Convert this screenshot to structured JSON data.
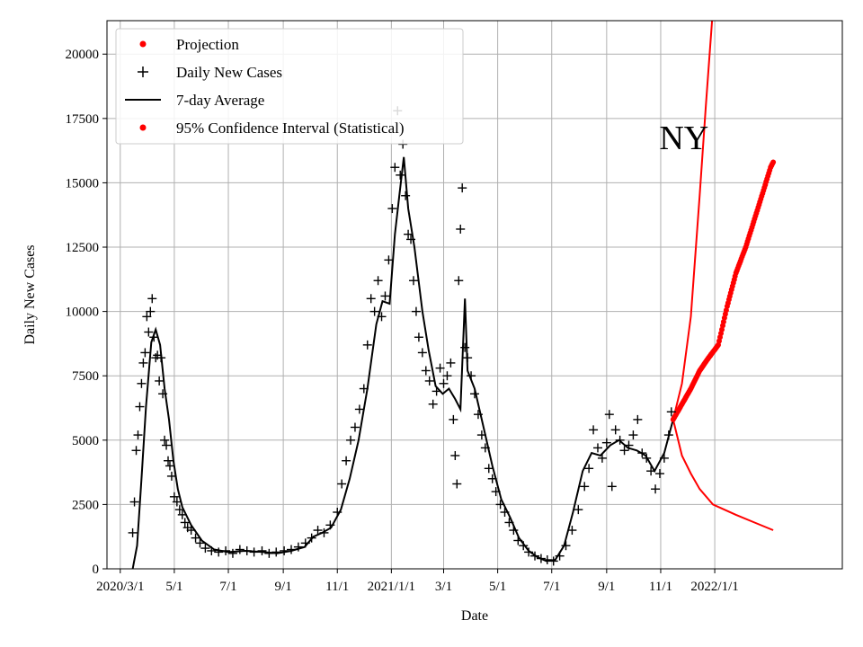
{
  "chart_data": {
    "type": "line",
    "xlabel": "Date",
    "ylabel": "Daily New Cases",
    "annotation": "NY",
    "xlim": [
      "2020-02-15",
      "2022-05-25"
    ],
    "ylim": [
      0,
      21300
    ],
    "grid": true,
    "legend_position": "top-left",
    "x_ticks": [
      {
        "date": "2020-03-01",
        "label": "2020/3/1"
      },
      {
        "date": "2020-05-01",
        "label": "5/1"
      },
      {
        "date": "2020-07-01",
        "label": "7/1"
      },
      {
        "date": "2020-09-01",
        "label": "9/1"
      },
      {
        "date": "2020-11-01",
        "label": "11/1"
      },
      {
        "date": "2021-01-01",
        "label": "2021/1/1"
      },
      {
        "date": "2021-03-01",
        "label": "3/1"
      },
      {
        "date": "2021-05-01",
        "label": "5/1"
      },
      {
        "date": "2021-07-01",
        "label": "7/1"
      },
      {
        "date": "2021-09-01",
        "label": "9/1"
      },
      {
        "date": "2021-11-01",
        "label": "11/1"
      },
      {
        "date": "2022-01-01",
        "label": "2022/1/1"
      }
    ],
    "y_ticks": [
      0,
      2500,
      5000,
      7500,
      10000,
      12500,
      15000,
      17500,
      20000
    ],
    "y_tick_labels": [
      "0",
      "2500",
      "5000",
      "7500",
      "10000",
      "12500",
      "15000",
      "17500",
      "20000"
    ],
    "legend": [
      {
        "label": "Projection",
        "marker": "dot",
        "color": "#ff0000"
      },
      {
        "label": "Daily New Cases",
        "marker": "plus",
        "color": "#000000"
      },
      {
        "label": "7-day Average",
        "marker": "line",
        "color": "#000000"
      },
      {
        "label": "95% Confidence Interval (Statistical)",
        "marker": "dot",
        "color": "#ff0000"
      }
    ],
    "series": [
      {
        "name": "7-day Average",
        "color": "#000000",
        "points": [
          [
            "2020-03-15",
            0
          ],
          [
            "2020-03-20",
            900
          ],
          [
            "2020-03-25",
            3500
          ],
          [
            "2020-03-30",
            6300
          ],
          [
            "2020-04-05",
            8800
          ],
          [
            "2020-04-10",
            9300
          ],
          [
            "2020-04-15",
            8700
          ],
          [
            "2020-04-20",
            7000
          ],
          [
            "2020-04-25",
            5800
          ],
          [
            "2020-04-30",
            4200
          ],
          [
            "2020-05-05",
            3100
          ],
          [
            "2020-05-10",
            2400
          ],
          [
            "2020-05-20",
            1700
          ],
          [
            "2020-06-01",
            1100
          ],
          [
            "2020-06-15",
            750
          ],
          [
            "2020-07-01",
            650
          ],
          [
            "2020-07-20",
            700
          ],
          [
            "2020-08-10",
            650
          ],
          [
            "2020-08-25",
            600
          ],
          [
            "2020-09-10",
            700
          ],
          [
            "2020-09-25",
            850
          ],
          [
            "2020-10-05",
            1250
          ],
          [
            "2020-10-15",
            1400
          ],
          [
            "2020-10-25",
            1600
          ],
          [
            "2020-11-05",
            2300
          ],
          [
            "2020-11-15",
            3500
          ],
          [
            "2020-11-25",
            5000
          ],
          [
            "2020-12-05",
            7000
          ],
          [
            "2020-12-15",
            9500
          ],
          [
            "2020-12-22",
            10400
          ],
          [
            "2020-12-30",
            10300
          ],
          [
            "2021-01-05",
            13000
          ],
          [
            "2021-01-10",
            14500
          ],
          [
            "2021-01-15",
            16000
          ],
          [
            "2021-01-20",
            14000
          ],
          [
            "2021-01-27",
            12500
          ],
          [
            "2021-02-05",
            10000
          ],
          [
            "2021-02-12",
            8500
          ],
          [
            "2021-02-20",
            7100
          ],
          [
            "2021-02-28",
            6800
          ],
          [
            "2021-03-07",
            7000
          ],
          [
            "2021-03-14",
            6600
          ],
          [
            "2021-03-20",
            6200
          ],
          [
            "2021-03-25",
            10500
          ],
          [
            "2021-03-28",
            7700
          ],
          [
            "2021-04-05",
            7000
          ],
          [
            "2021-04-15",
            5500
          ],
          [
            "2021-04-25",
            4000
          ],
          [
            "2021-05-05",
            2700
          ],
          [
            "2021-05-15",
            2000
          ],
          [
            "2021-05-25",
            1200
          ],
          [
            "2021-06-05",
            700
          ],
          [
            "2021-06-15",
            450
          ],
          [
            "2021-06-25",
            300
          ],
          [
            "2021-07-05",
            350
          ],
          [
            "2021-07-15",
            900
          ],
          [
            "2021-07-25",
            2200
          ],
          [
            "2021-08-05",
            3800
          ],
          [
            "2021-08-15",
            4500
          ],
          [
            "2021-08-25",
            4400
          ],
          [
            "2021-09-05",
            4800
          ],
          [
            "2021-09-15",
            5000
          ],
          [
            "2021-09-25",
            4700
          ],
          [
            "2021-10-05",
            4600
          ],
          [
            "2021-10-15",
            4400
          ],
          [
            "2021-10-25",
            3800
          ],
          [
            "2021-11-05",
            4500
          ],
          [
            "2021-11-15",
            5800
          ]
        ]
      },
      {
        "name": "Projection",
        "color": "#ff0000",
        "points": [
          [
            "2021-11-15",
            5800
          ],
          [
            "2021-11-25",
            6400
          ],
          [
            "2021-12-05",
            7000
          ],
          [
            "2021-12-15",
            7700
          ],
          [
            "2021-12-25",
            8200
          ],
          [
            "2022-01-05",
            8700
          ],
          [
            "2022-01-15",
            10200
          ],
          [
            "2022-01-25",
            11500
          ],
          [
            "2022-02-05",
            12500
          ],
          [
            "2022-02-15",
            13600
          ],
          [
            "2022-02-25",
            14700
          ],
          [
            "2022-03-05",
            15600
          ],
          [
            "2022-03-08",
            15800
          ]
        ]
      },
      {
        "name": "95% Confidence Interval (Statistical)",
        "color": "#ff0000",
        "upper": [
          [
            "2021-11-15",
            5800
          ],
          [
            "2021-11-25",
            7200
          ],
          [
            "2021-12-05",
            9800
          ],
          [
            "2021-12-15",
            14500
          ],
          [
            "2021-12-22",
            18000
          ],
          [
            "2021-12-29",
            21300
          ]
        ],
        "lower": [
          [
            "2021-11-15",
            5800
          ],
          [
            "2021-11-25",
            4400
          ],
          [
            "2021-12-05",
            3700
          ],
          [
            "2021-12-15",
            3100
          ],
          [
            "2021-12-30",
            2500
          ],
          [
            "2022-01-25",
            2100
          ],
          [
            "2022-02-15",
            1800
          ],
          [
            "2022-03-08",
            1500
          ]
        ]
      },
      {
        "name": "Daily New Cases",
        "color": "#000000",
        "points": [
          [
            "2020-03-15",
            1400
          ],
          [
            "2020-03-17",
            2600
          ],
          [
            "2020-03-19",
            4600
          ],
          [
            "2020-03-21",
            5200
          ],
          [
            "2020-03-23",
            6300
          ],
          [
            "2020-03-25",
            7200
          ],
          [
            "2020-03-27",
            8000
          ],
          [
            "2020-03-29",
            8400
          ],
          [
            "2020-03-31",
            9800
          ],
          [
            "2020-04-02",
            9200
          ],
          [
            "2020-04-04",
            10000
          ],
          [
            "2020-04-06",
            10500
          ],
          [
            "2020-04-08",
            9000
          ],
          [
            "2020-04-10",
            8200
          ],
          [
            "2020-04-12",
            8300
          ],
          [
            "2020-04-14",
            7300
          ],
          [
            "2020-04-16",
            8200
          ],
          [
            "2020-04-18",
            6800
          ],
          [
            "2020-04-20",
            5000
          ],
          [
            "2020-04-22",
            4800
          ],
          [
            "2020-04-24",
            4200
          ],
          [
            "2020-04-26",
            4000
          ],
          [
            "2020-04-28",
            3600
          ],
          [
            "2020-05-01",
            2800
          ],
          [
            "2020-05-04",
            2600
          ],
          [
            "2020-05-07",
            2300
          ],
          [
            "2020-05-10",
            2100
          ],
          [
            "2020-05-13",
            1800
          ],
          [
            "2020-05-16",
            1600
          ],
          [
            "2020-05-20",
            1500
          ],
          [
            "2020-05-25",
            1200
          ],
          [
            "2020-05-30",
            1000
          ],
          [
            "2020-06-05",
            800
          ],
          [
            "2020-06-12",
            700
          ],
          [
            "2020-06-20",
            650
          ],
          [
            "2020-06-28",
            700
          ],
          [
            "2020-07-06",
            600
          ],
          [
            "2020-07-14",
            750
          ],
          [
            "2020-07-22",
            700
          ],
          [
            "2020-07-30",
            650
          ],
          [
            "2020-08-08",
            700
          ],
          [
            "2020-08-16",
            600
          ],
          [
            "2020-08-24",
            650
          ],
          [
            "2020-09-02",
            700
          ],
          [
            "2020-09-10",
            750
          ],
          [
            "2020-09-18",
            850
          ],
          [
            "2020-09-26",
            1000
          ],
          [
            "2020-10-03",
            1200
          ],
          [
            "2020-10-10",
            1500
          ],
          [
            "2020-10-17",
            1400
          ],
          [
            "2020-10-24",
            1700
          ],
          [
            "2020-11-01",
            2200
          ],
          [
            "2020-11-06",
            3300
          ],
          [
            "2020-11-11",
            4200
          ],
          [
            "2020-11-16",
            5000
          ],
          [
            "2020-11-21",
            5500
          ],
          [
            "2020-11-26",
            6200
          ],
          [
            "2020-12-01",
            7000
          ],
          [
            "2020-12-05",
            8700
          ],
          [
            "2020-12-09",
            10500
          ],
          [
            "2020-12-13",
            10000
          ],
          [
            "2020-12-17",
            11200
          ],
          [
            "2020-12-21",
            9800
          ],
          [
            "2020-12-25",
            10600
          ],
          [
            "2020-12-29",
            12000
          ],
          [
            "2021-01-02",
            14000
          ],
          [
            "2021-01-05",
            15600
          ],
          [
            "2021-01-08",
            17800
          ],
          [
            "2021-01-11",
            15300
          ],
          [
            "2021-01-14",
            16500
          ],
          [
            "2021-01-17",
            14500
          ],
          [
            "2021-01-20",
            13000
          ],
          [
            "2021-01-23",
            12800
          ],
          [
            "2021-01-26",
            11200
          ],
          [
            "2021-01-29",
            10000
          ],
          [
            "2021-02-01",
            9000
          ],
          [
            "2021-02-05",
            8400
          ],
          [
            "2021-02-09",
            7700
          ],
          [
            "2021-02-13",
            7300
          ],
          [
            "2021-02-17",
            6400
          ],
          [
            "2021-02-21",
            6900
          ],
          [
            "2021-02-25",
            7800
          ],
          [
            "2021-03-01",
            7200
          ],
          [
            "2021-03-05",
            7500
          ],
          [
            "2021-03-09",
            8000
          ],
          [
            "2021-03-12",
            5800
          ],
          [
            "2021-03-14",
            4400
          ],
          [
            "2021-03-16",
            3300
          ],
          [
            "2021-03-18",
            11200
          ],
          [
            "2021-03-20",
            13200
          ],
          [
            "2021-03-22",
            14800
          ],
          [
            "2021-03-25",
            8600
          ],
          [
            "2021-03-28",
            8200
          ],
          [
            "2021-04-01",
            7500
          ],
          [
            "2021-04-05",
            6800
          ],
          [
            "2021-04-09",
            6000
          ],
          [
            "2021-04-13",
            5200
          ],
          [
            "2021-04-17",
            4700
          ],
          [
            "2021-04-21",
            3900
          ],
          [
            "2021-04-25",
            3500
          ],
          [
            "2021-04-29",
            3000
          ],
          [
            "2021-05-04",
            2500
          ],
          [
            "2021-05-09",
            2200
          ],
          [
            "2021-05-14",
            1800
          ],
          [
            "2021-05-19",
            1500
          ],
          [
            "2021-05-24",
            1100
          ],
          [
            "2021-05-30",
            900
          ],
          [
            "2021-06-05",
            650
          ],
          [
            "2021-06-12",
            500
          ],
          [
            "2021-06-19",
            400
          ],
          [
            "2021-06-26",
            350
          ],
          [
            "2021-07-03",
            300
          ],
          [
            "2021-07-10",
            500
          ],
          [
            "2021-07-17",
            900
          ],
          [
            "2021-07-24",
            1500
          ],
          [
            "2021-07-31",
            2300
          ],
          [
            "2021-08-07",
            3200
          ],
          [
            "2021-08-12",
            3900
          ],
          [
            "2021-08-17",
            5400
          ],
          [
            "2021-08-22",
            4700
          ],
          [
            "2021-08-27",
            4300
          ],
          [
            "2021-09-01",
            4900
          ],
          [
            "2021-09-04",
            6000
          ],
          [
            "2021-09-07",
            3200
          ],
          [
            "2021-09-11",
            5400
          ],
          [
            "2021-09-16",
            5000
          ],
          [
            "2021-09-21",
            4600
          ],
          [
            "2021-09-26",
            4800
          ],
          [
            "2021-10-01",
            5200
          ],
          [
            "2021-10-06",
            5800
          ],
          [
            "2021-10-11",
            4500
          ],
          [
            "2021-10-16",
            4300
          ],
          [
            "2021-10-21",
            3800
          ],
          [
            "2021-10-26",
            3100
          ],
          [
            "2021-10-31",
            3700
          ],
          [
            "2021-11-05",
            4300
          ],
          [
            "2021-11-10",
            5200
          ],
          [
            "2021-11-13",
            6100
          ]
        ]
      }
    ]
  }
}
